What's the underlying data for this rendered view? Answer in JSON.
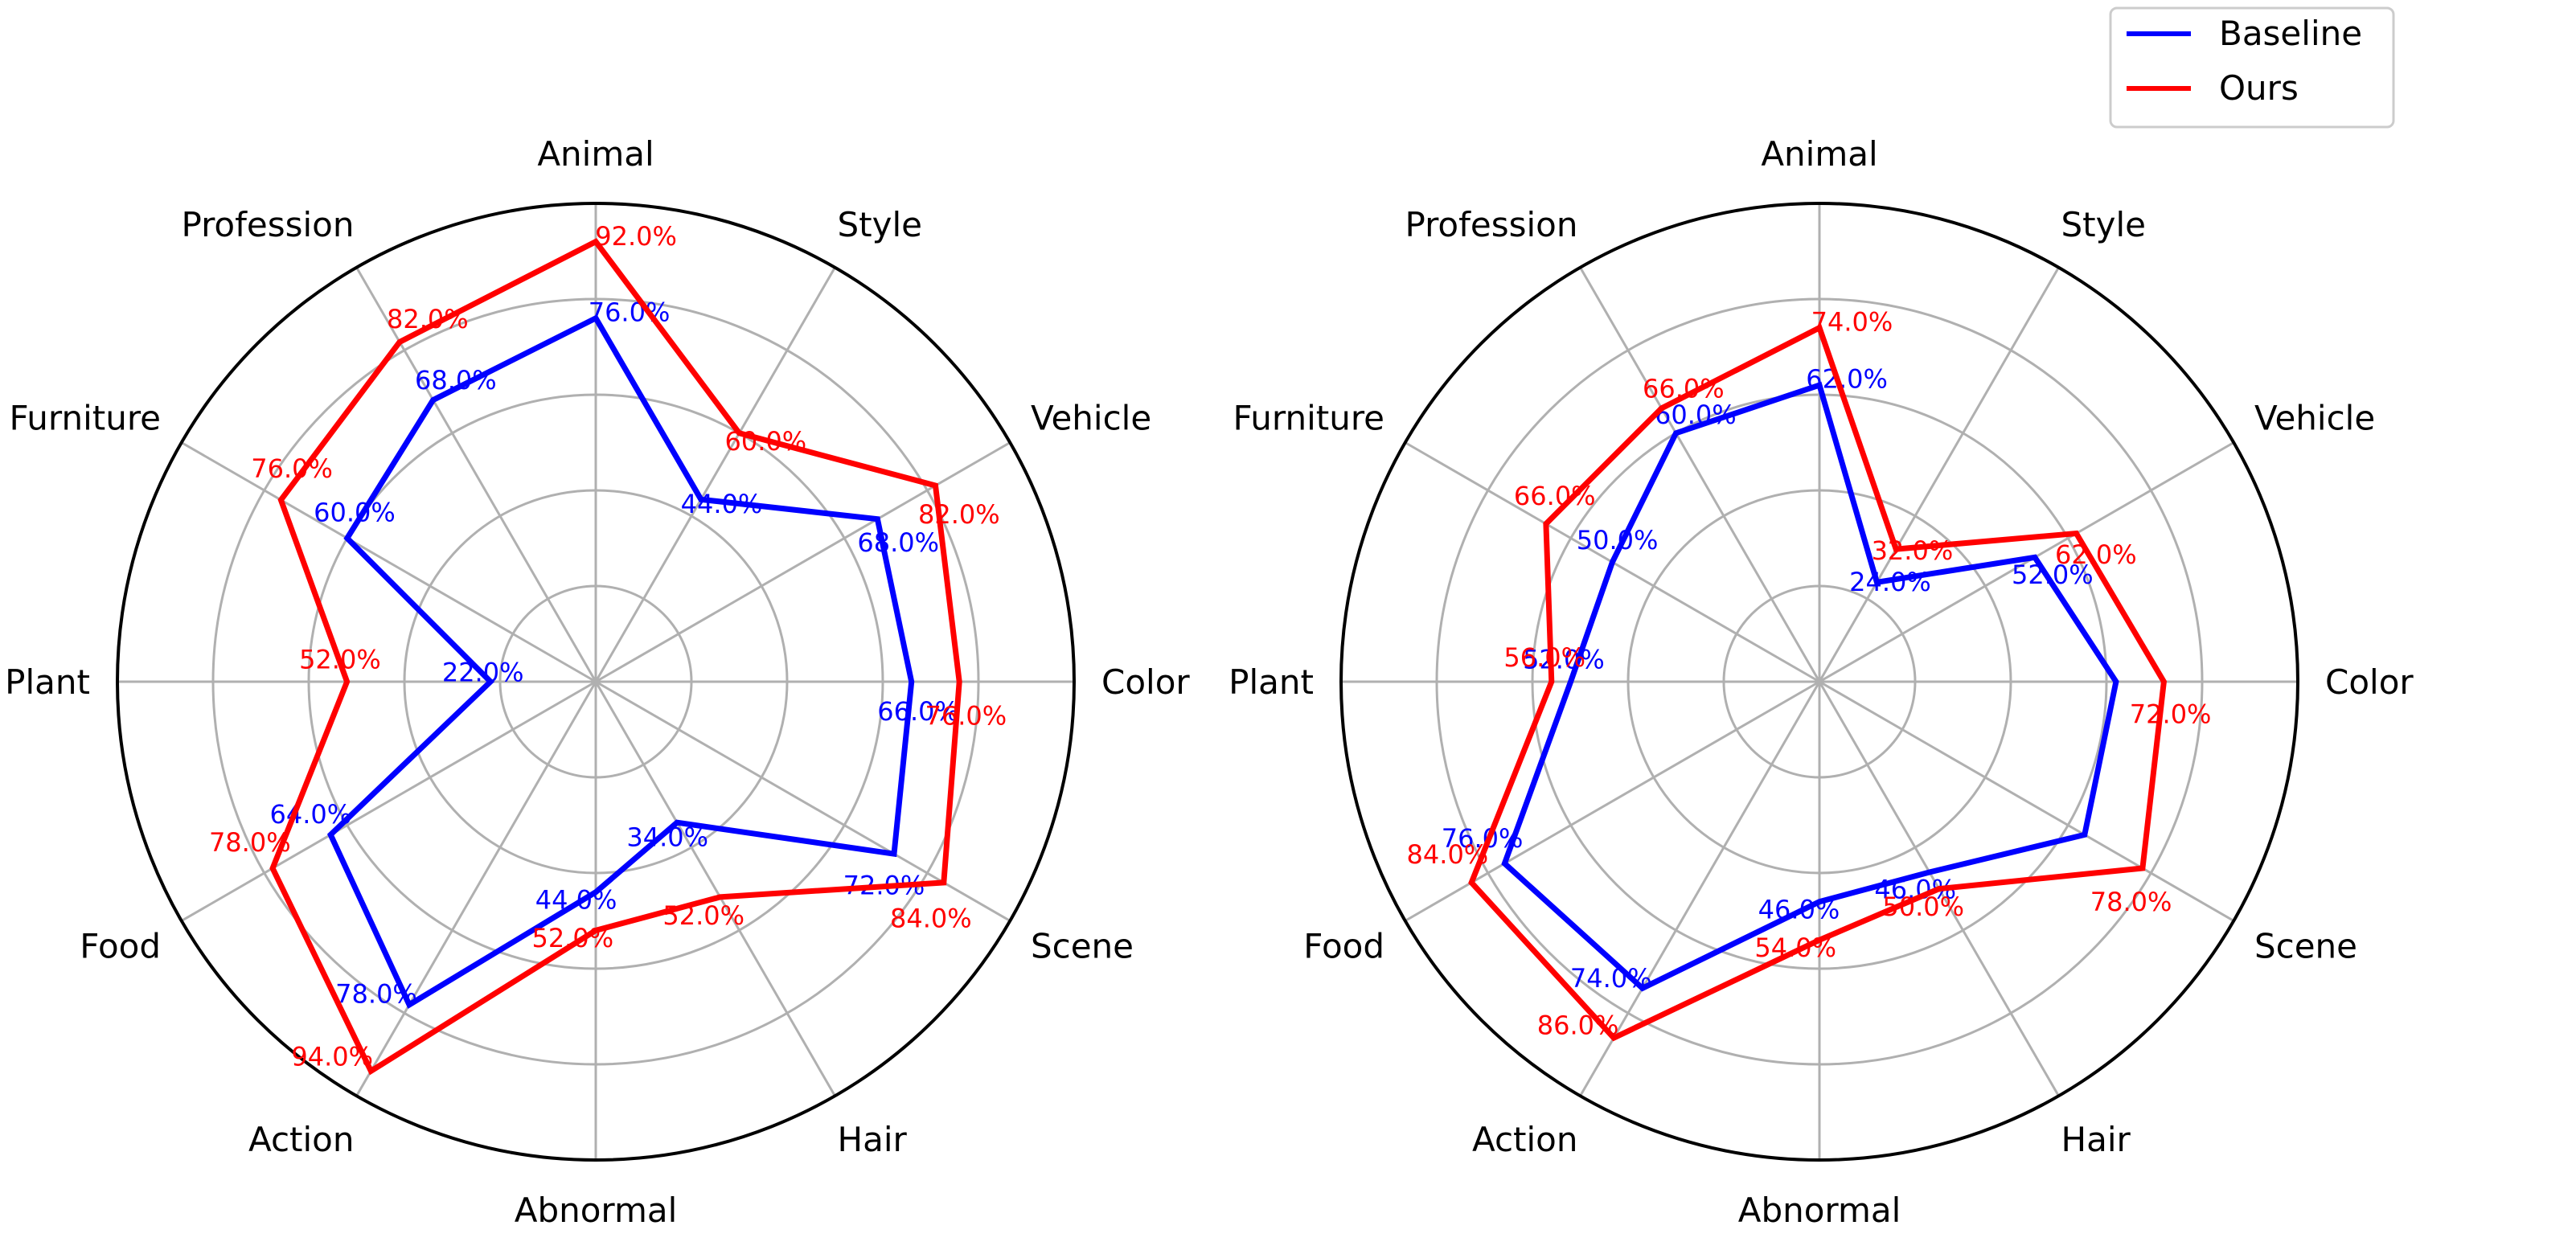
{
  "chart_data": [
    {
      "type": "radar",
      "categories": [
        "Animal",
        "Style",
        "Vehicle",
        "Color",
        "Scene",
        "Hair",
        "Abnormal",
        "Action",
        "Food",
        "Plant",
        "Furniture",
        "Profession"
      ],
      "rlim": [
        0,
        100
      ],
      "grid": true,
      "series": [
        {
          "name": "Baseline",
          "color": "#0000ff",
          "values": [
            76,
            44,
            68,
            66,
            72,
            34,
            44,
            78,
            64,
            22,
            60,
            68
          ],
          "labels": [
            "76.0%",
            "44.0%",
            "68.0%",
            "66.0%",
            "72.0%",
            "34.0%",
            "44.0%",
            "78.0%",
            "64.0%",
            "22.0%",
            "60.0%",
            "68.0%"
          ]
        },
        {
          "name": "Ours",
          "color": "#ff0000",
          "values": [
            92,
            60,
            82,
            76,
            84,
            52,
            52,
            94,
            78,
            52,
            76,
            82
          ],
          "labels": [
            "92.0%",
            "60.0%",
            "82.0%",
            "76.0%",
            "84.0%",
            "52.0%",
            "52.0%",
            "94.0%",
            "78.0%",
            "52.0%",
            "76.0%",
            "82.0%"
          ]
        }
      ]
    },
    {
      "type": "radar",
      "categories": [
        "Animal",
        "Style",
        "Vehicle",
        "Color",
        "Scene",
        "Hair",
        "Abnormal",
        "Action",
        "Food",
        "Plant",
        "Furniture",
        "Profession"
      ],
      "rlim": [
        0,
        100
      ],
      "grid": true,
      "series": [
        {
          "name": "Baseline",
          "color": "#0000ff",
          "values": [
            62,
            24,
            52,
            62,
            64,
            46,
            46,
            74,
            76,
            52,
            50,
            60
          ],
          "labels": [
            "62.0%",
            "24.0%",
            "52.0%",
            "",
            "",
            "46.0%",
            "46.0%",
            "74.0%",
            "76.0%",
            "52.0%",
            "50.0%",
            "60.0%"
          ]
        },
        {
          "name": "Ours",
          "color": "#ff0000",
          "values": [
            74,
            32,
            62,
            72,
            78,
            50,
            54,
            86,
            84,
            56,
            66,
            66
          ],
          "labels": [
            "74.0%",
            "32.0%",
            "62.0%",
            "72.0%",
            "78.0%",
            "50.0%",
            "54.0%",
            "86.0%",
            "84.0%",
            "56.0%",
            "66.0%",
            "66.0%"
          ]
        }
      ]
    }
  ],
  "legend": {
    "position": "top-right",
    "entries": [
      {
        "name": "Baseline",
        "color": "#0000ff"
      },
      {
        "name": "Ours",
        "color": "#ff0000"
      }
    ]
  }
}
